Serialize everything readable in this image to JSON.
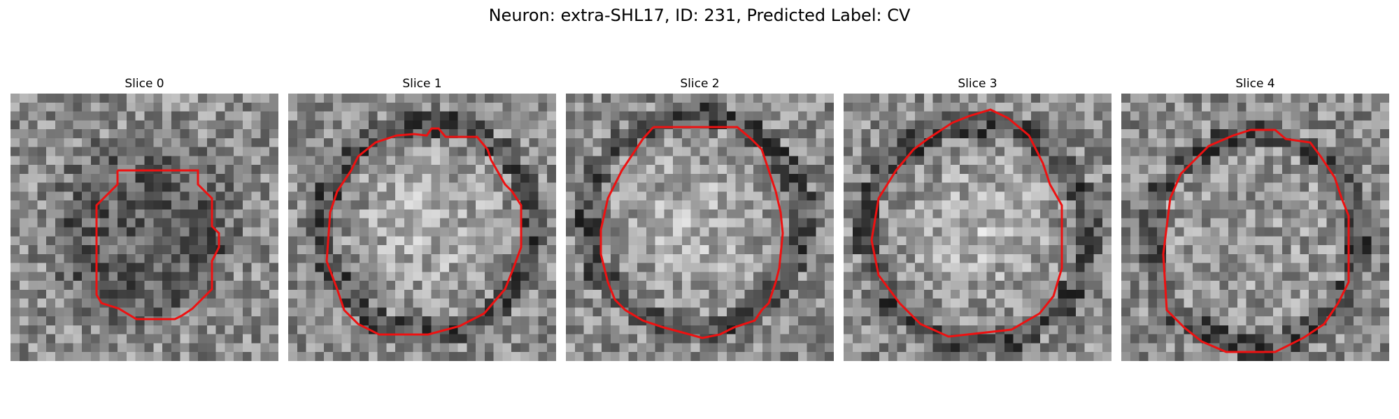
{
  "figure": {
    "title": "Neuron: extra-SHL17, ID: 231, Predicted Label: CV",
    "outline_color": "#ee1111"
  },
  "slices": [
    {
      "title": "Slice 0",
      "interior": "dark"
    },
    {
      "title": "Slice 1",
      "interior": "bright"
    },
    {
      "title": "Slice 2",
      "interior": "bright"
    },
    {
      "title": "Slice 3",
      "interior": "bright"
    },
    {
      "title": "Slice 4",
      "interior": "medium"
    }
  ]
}
